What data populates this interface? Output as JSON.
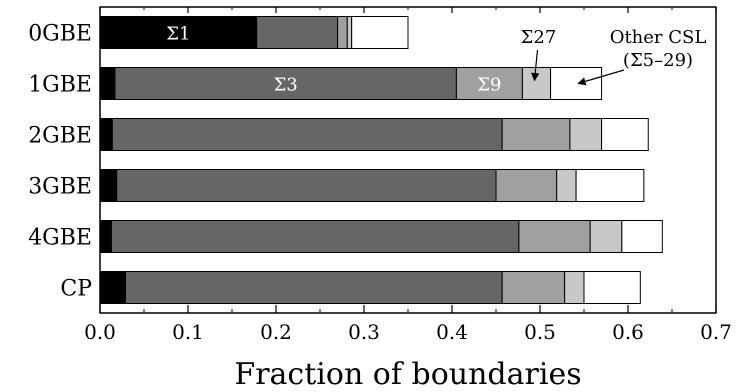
{
  "chart_data": {
    "type": "bar",
    "orientation": "horizontal",
    "stacked": true,
    "title": "",
    "xlabel": "Fraction of boundaries",
    "ylabel": "",
    "xlim": [
      0,
      0.7
    ],
    "xticks": [
      "0.0",
      "0.1",
      "0.2",
      "0.3",
      "0.4",
      "0.5",
      "0.6",
      "0.7"
    ],
    "grid": false,
    "legend": "none",
    "categories": [
      "0GBE",
      "1GBE",
      "2GBE",
      "3GBE",
      "4GBE",
      "CP"
    ],
    "series": [
      {
        "name": "Σ1",
        "color": "#000000",
        "values": [
          0.178,
          0.017,
          0.014,
          0.019,
          0.013,
          0.029
        ]
      },
      {
        "name": "Σ3",
        "color": "#666666",
        "values": [
          0.092,
          0.388,
          0.443,
          0.431,
          0.463,
          0.428
        ]
      },
      {
        "name": "Σ9",
        "color": "#a0a0a0",
        "values": [
          0.011,
          0.075,
          0.077,
          0.069,
          0.081,
          0.071
        ]
      },
      {
        "name": "Σ27",
        "color": "#c8c8c8",
        "values": [
          0.005,
          0.032,
          0.036,
          0.022,
          0.036,
          0.022
        ]
      },
      {
        "name": "",
        "color": "#ffffff",
        "values": [
          0.064,
          0.058,
          0.053,
          0.077,
          0.046,
          0.064
        ]
      }
    ],
    "segment_labels": [
      {
        "text": "Σ1",
        "category": "0GBE",
        "series": "Σ1"
      },
      {
        "text": "Σ3",
        "category": "1GBE",
        "series": "Σ3"
      },
      {
        "text": "Σ9",
        "category": "1GBE",
        "series": "Σ9"
      }
    ],
    "annotations": [
      {
        "text": "Σ27",
        "target_category": "1GBE",
        "target_series": "Σ27"
      },
      {
        "text": "Other CSL",
        "text2": "(Σ5–29)",
        "target_category": "1GBE",
        "target_series": 4
      }
    ]
  }
}
